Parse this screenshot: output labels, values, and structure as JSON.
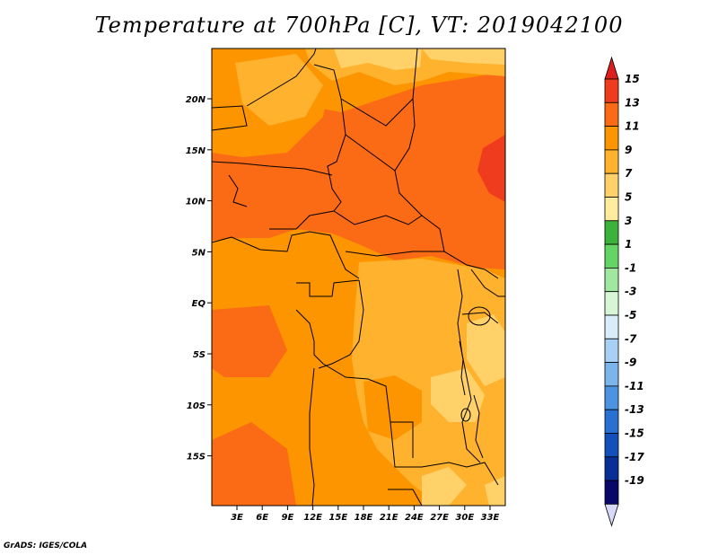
{
  "title": "Temperature at 700hPa [C], VT: 2019042100",
  "credit": "GrADS: IGES/COLA",
  "map": {
    "lon_ticks": [
      "3E",
      "6E",
      "9E",
      "12E",
      "15E",
      "18E",
      "21E",
      "24E",
      "27E",
      "30E",
      "33E"
    ],
    "lat_ticks": [
      "20N",
      "15N",
      "10N",
      "5N",
      "EQ",
      "5S",
      "10S",
      "15S"
    ]
  },
  "colorbar": {
    "labels": [
      "15",
      "13",
      "11",
      "9",
      "7",
      "5",
      "3",
      "1",
      "-1",
      "-3",
      "-5",
      "-7",
      "-9",
      "-11",
      "-13",
      "-15",
      "-17",
      "-19"
    ],
    "colors": [
      "#f03c1e",
      "#fb6a14",
      "#fd9500",
      "#ffb22e",
      "#ffd168",
      "#ffec9c",
      "#3bb23b",
      "#64d464",
      "#a0e8a0",
      "#d6f6d6",
      "#d8ecfa",
      "#a8d0f4",
      "#7cb4ec",
      "#4c94e2",
      "#2a70d2",
      "#1450bc",
      "#0a2e98",
      "#080868"
    ],
    "top_color": "#dc1e1e",
    "bottom_color": "#d8d8f8"
  }
}
